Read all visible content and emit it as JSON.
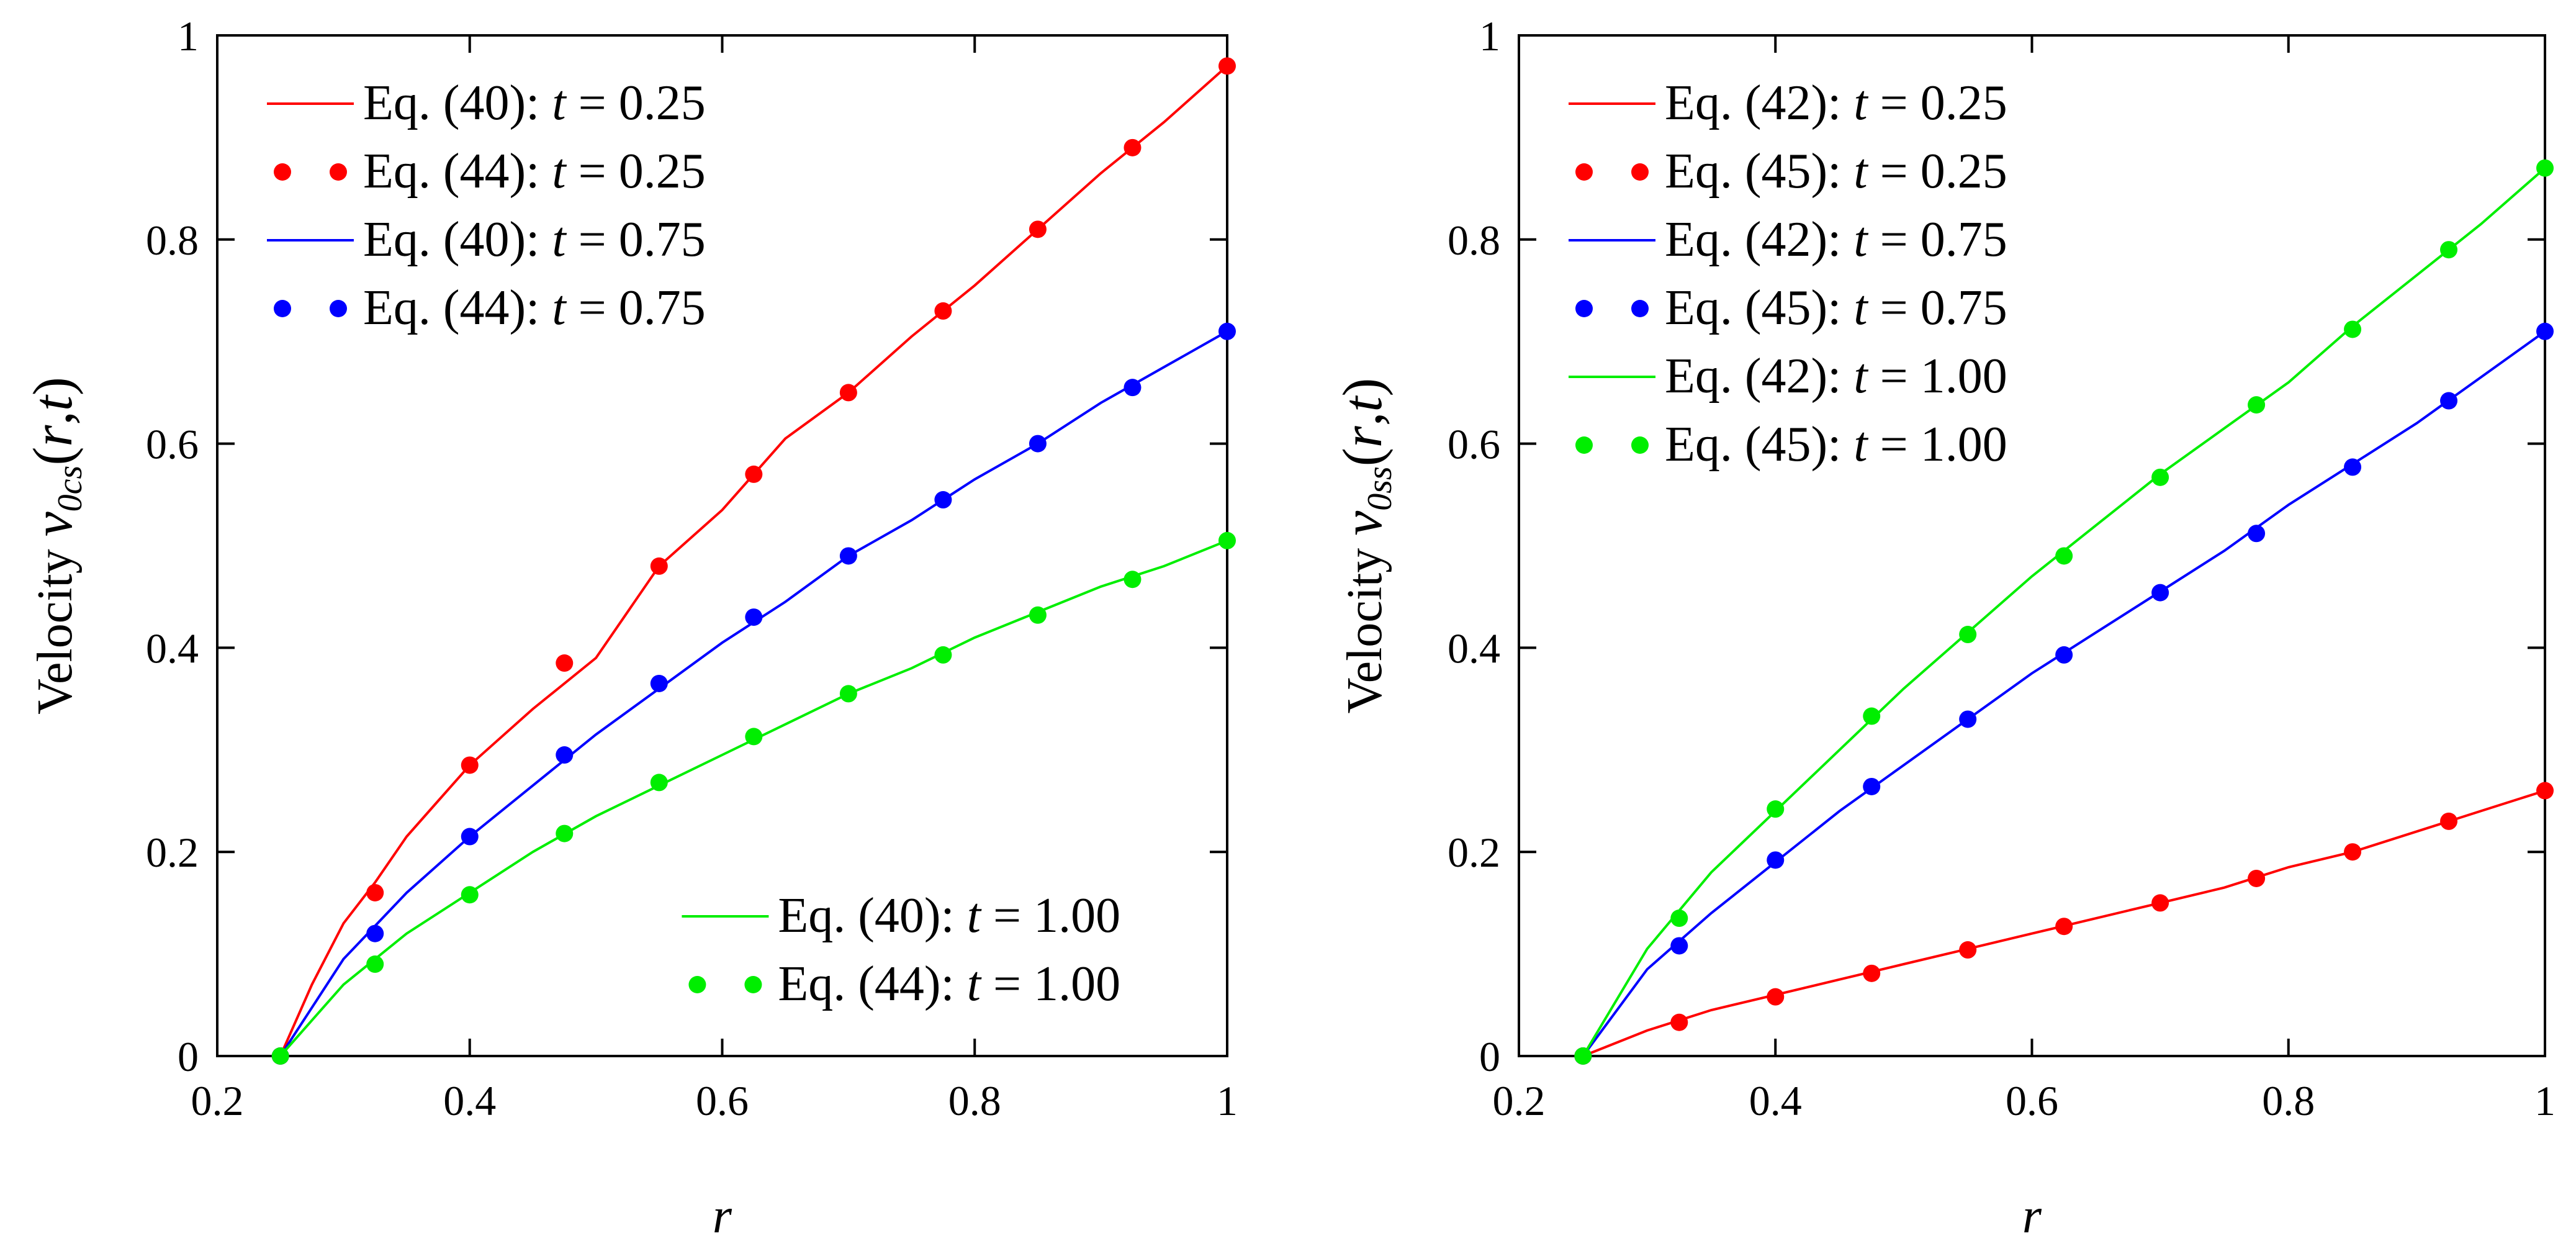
{
  "chart_data": [
    {
      "type": "line",
      "xlabel": "r",
      "ylabel_prefix": "Velocity ",
      "ylabel_symbol": "v",
      "ylabel_subscript": "0cs",
      "ylabel_args": "(r,t)",
      "xlim": [
        0.2,
        1.0
      ],
      "ylim": [
        0,
        1.0
      ],
      "xticks": [
        0.2,
        0.4,
        0.6,
        0.8,
        1.0
      ],
      "xtick_labels": [
        "0.2",
        "0.4",
        "0.6",
        "0.8",
        "1"
      ],
      "yticks": [
        0,
        0.2,
        0.4,
        0.6,
        0.8,
        1.0
      ],
      "ytick_labels": [
        "0",
        "0.2",
        "0.4",
        "0.6",
        "0.8",
        "1"
      ],
      "grid": false,
      "series": [
        {
          "name": "t = 0.25",
          "color": "#ff0000",
          "line_label": "Eq. (40): t = 0.25",
          "marker_label": "Eq. (44): t = 0.25",
          "line_x": [
            0.25,
            0.275,
            0.3,
            0.325,
            0.35,
            0.375,
            0.4,
            0.45,
            0.5,
            0.55,
            0.6,
            0.65,
            0.7,
            0.75,
            0.8,
            0.85,
            0.9,
            0.95,
            1.0
          ],
          "line_y": [
            0.0,
            0.07,
            0.13,
            0.17,
            0.215,
            0.25,
            0.285,
            0.34,
            0.39,
            0.48,
            0.535,
            0.605,
            0.65,
            0.705,
            0.755,
            0.81,
            0.865,
            0.915,
            0.97
          ],
          "marker_x": [
            0.25,
            0.325,
            0.4,
            0.475,
            0.55,
            0.625,
            0.7,
            0.775,
            0.85,
            0.925,
            1.0
          ],
          "marker_y": [
            0.0,
            0.16,
            0.285,
            0.385,
            0.48,
            0.57,
            0.65,
            0.73,
            0.81,
            0.89,
            0.97
          ]
        },
        {
          "name": "t = 0.75",
          "color": "#0000ff",
          "line_label": "Eq. (40): t = 0.75",
          "marker_label": "Eq. (44): t = 0.75",
          "line_x": [
            0.25,
            0.3,
            0.35,
            0.4,
            0.45,
            0.5,
            0.55,
            0.6,
            0.65,
            0.7,
            0.75,
            0.8,
            0.85,
            0.9,
            0.95,
            1.0
          ],
          "line_y": [
            0.0,
            0.095,
            0.16,
            0.215,
            0.265,
            0.315,
            0.36,
            0.405,
            0.445,
            0.49,
            0.525,
            0.565,
            0.6,
            0.64,
            0.675,
            0.71
          ],
          "marker_x": [
            0.25,
            0.325,
            0.4,
            0.475,
            0.55,
            0.625,
            0.7,
            0.775,
            0.85,
            0.925,
            1.0
          ],
          "marker_y": [
            0.0,
            0.12,
            0.215,
            0.295,
            0.365,
            0.43,
            0.49,
            0.545,
            0.6,
            0.655,
            0.71
          ]
        },
        {
          "name": "t = 1.00",
          "color": "#00ee00",
          "line_label": "Eq. (40): t = 1.00",
          "marker_label": "Eq. (44): t = 1.00",
          "line_x": [
            0.25,
            0.3,
            0.35,
            0.4,
            0.45,
            0.5,
            0.55,
            0.6,
            0.65,
            0.7,
            0.75,
            0.8,
            0.85,
            0.9,
            0.95,
            1.0
          ],
          "line_y": [
            0.0,
            0.07,
            0.12,
            0.16,
            0.2,
            0.235,
            0.265,
            0.295,
            0.325,
            0.355,
            0.38,
            0.41,
            0.435,
            0.46,
            0.48,
            0.505
          ],
          "marker_x": [
            0.25,
            0.325,
            0.4,
            0.475,
            0.55,
            0.625,
            0.7,
            0.775,
            0.85,
            0.925,
            1.0
          ],
          "marker_y": [
            0.0,
            0.09,
            0.158,
            0.218,
            0.268,
            0.313,
            0.355,
            0.393,
            0.432,
            0.467,
            0.505
          ]
        }
      ],
      "legends": [
        {
          "position": "top-left",
          "series": [
            0,
            1
          ]
        },
        {
          "position": "bottom-right",
          "series": [
            2
          ]
        }
      ]
    },
    {
      "type": "line",
      "xlabel": "r",
      "ylabel_prefix": "Velocity ",
      "ylabel_symbol": "v",
      "ylabel_subscript": "0ss",
      "ylabel_args": "(r,t)",
      "xlim": [
        0.2,
        1.0
      ],
      "ylim": [
        0,
        1.0
      ],
      "xticks": [
        0.2,
        0.4,
        0.6,
        0.8,
        1.0
      ],
      "xtick_labels": [
        "0.2",
        "0.4",
        "0.6",
        "0.8",
        "1"
      ],
      "yticks": [
        0,
        0.2,
        0.4,
        0.6,
        0.8,
        1.0
      ],
      "ytick_labels": [
        "0",
        "0.2",
        "0.4",
        "0.6",
        "0.8",
        "1"
      ],
      "grid": false,
      "series": [
        {
          "name": "t = 0.25",
          "color": "#ff0000",
          "line_label": "Eq. (42): t = 0.25",
          "marker_label": "Eq. (45): t = 0.25",
          "line_x": [
            0.25,
            0.3,
            0.35,
            0.4,
            0.45,
            0.5,
            0.55,
            0.6,
            0.65,
            0.7,
            0.75,
            0.8,
            0.85,
            0.9,
            0.95,
            1.0
          ],
          "line_y": [
            0.0,
            0.025,
            0.045,
            0.06,
            0.075,
            0.09,
            0.105,
            0.12,
            0.135,
            0.15,
            0.165,
            0.185,
            0.2,
            0.22,
            0.24,
            0.26
          ],
          "marker_x": [
            0.25,
            0.325,
            0.4,
            0.475,
            0.55,
            0.625,
            0.7,
            0.775,
            0.85,
            0.925,
            1.0
          ],
          "marker_y": [
            0.0,
            0.033,
            0.058,
            0.081,
            0.104,
            0.127,
            0.15,
            0.174,
            0.2,
            0.23,
            0.26
          ]
        },
        {
          "name": "t = 0.75",
          "color": "#0000ff",
          "line_label": "Eq. (42): t = 0.75",
          "marker_label": "Eq. (45): t = 0.75",
          "line_x": [
            0.25,
            0.3,
            0.35,
            0.4,
            0.45,
            0.5,
            0.55,
            0.6,
            0.65,
            0.7,
            0.75,
            0.8,
            0.85,
            0.9,
            0.95,
            1.0
          ],
          "line_y": [
            0.0,
            0.085,
            0.14,
            0.19,
            0.24,
            0.285,
            0.33,
            0.375,
            0.415,
            0.455,
            0.495,
            0.54,
            0.58,
            0.62,
            0.665,
            0.71
          ],
          "marker_x": [
            0.25,
            0.325,
            0.4,
            0.475,
            0.55,
            0.625,
            0.7,
            0.775,
            0.85,
            0.925,
            1.0
          ],
          "marker_y": [
            0.0,
            0.108,
            0.192,
            0.264,
            0.33,
            0.393,
            0.454,
            0.512,
            0.577,
            0.642,
            0.71
          ]
        },
        {
          "name": "t = 1.00",
          "color": "#00ee00",
          "line_label": "Eq. (42): t = 1.00",
          "marker_label": "Eq. (45): t = 1.00",
          "line_x": [
            0.25,
            0.3,
            0.35,
            0.4,
            0.45,
            0.5,
            0.55,
            0.6,
            0.65,
            0.7,
            0.75,
            0.8,
            0.85,
            0.9,
            0.95,
            1.0
          ],
          "line_y": [
            0.0,
            0.105,
            0.18,
            0.24,
            0.3,
            0.36,
            0.415,
            0.47,
            0.52,
            0.57,
            0.615,
            0.66,
            0.715,
            0.765,
            0.815,
            0.87
          ],
          "marker_x": [
            0.25,
            0.325,
            0.4,
            0.475,
            0.55,
            0.625,
            0.7,
            0.775,
            0.85,
            0.925,
            1.0
          ],
          "marker_y": [
            0.0,
            0.135,
            0.242,
            0.333,
            0.413,
            0.49,
            0.567,
            0.638,
            0.712,
            0.79,
            0.87
          ]
        }
      ],
      "legends": [
        {
          "position": "top-left",
          "series": [
            0,
            1,
            2
          ]
        }
      ]
    }
  ]
}
